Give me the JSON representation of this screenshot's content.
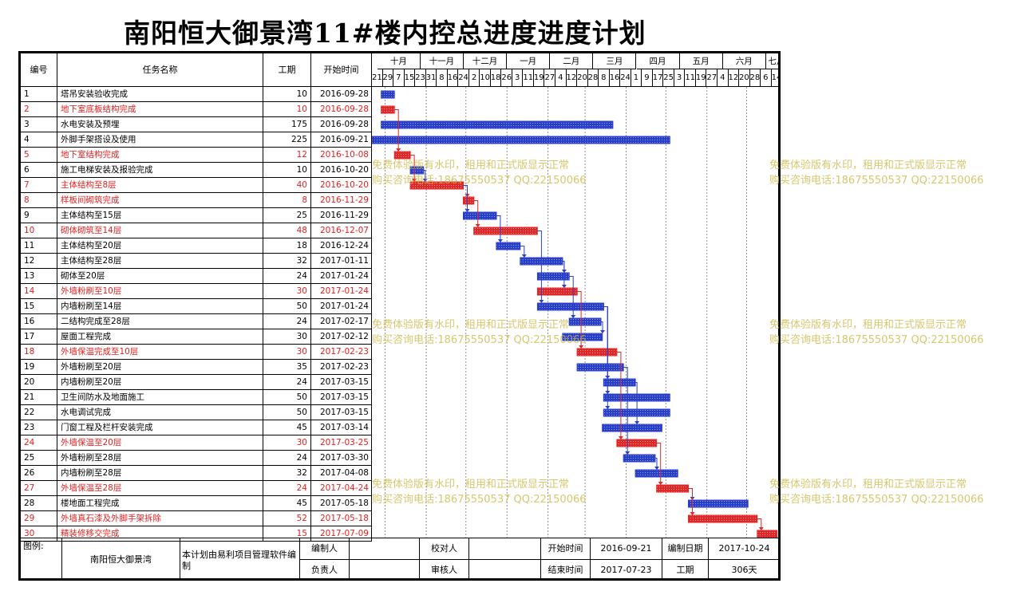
{
  "title": "南阳恒大御景湾11#楼内控总进度进度计划",
  "headers": {
    "id": "编号",
    "name": "任务名称",
    "duration": "工期",
    "start": "开始时间"
  },
  "months": [
    "十月",
    "十一月",
    "十二月",
    "一月",
    "二月",
    "三月",
    "四月",
    "五月",
    "六月",
    "七月"
  ],
  "weeks": [
    "21",
    "29",
    "7",
    "15",
    "23",
    "31",
    "8",
    "16",
    "24",
    "2",
    "10",
    "18",
    "26",
    "3",
    "11",
    "19",
    "27",
    "4",
    "12",
    "20",
    "28",
    "8",
    "16",
    "24",
    "1",
    "9",
    "17",
    "25",
    "3",
    "11",
    "19",
    "27",
    "4",
    "12",
    "20",
    "28",
    "6",
    "14"
  ],
  "tasks": [
    {
      "id": "1",
      "name": "塔吊安装验收完成",
      "duration": "10",
      "start": "2016-09-28",
      "critical": false
    },
    {
      "id": "2",
      "name": "地下室底板结构完成",
      "duration": "10",
      "start": "2016-09-28",
      "critical": true
    },
    {
      "id": "3",
      "name": "水电安装及预埋",
      "duration": "175",
      "start": "2016-09-28",
      "critical": false
    },
    {
      "id": "4",
      "name": "外脚手架搭设及使用",
      "duration": "225",
      "start": "2016-09-21",
      "critical": false
    },
    {
      "id": "5",
      "name": "地下室结构完成",
      "duration": "12",
      "start": "2016-10-08",
      "critical": true
    },
    {
      "id": "6",
      "name": "施工电梯安装及报验完成",
      "duration": "10",
      "start": "2016-10-20",
      "critical": false
    },
    {
      "id": "7",
      "name": "主体结构至8层",
      "duration": "40",
      "start": "2016-10-20",
      "critical": true
    },
    {
      "id": "8",
      "name": "样板间砌筑完成",
      "duration": "8",
      "start": "2016-11-29",
      "critical": true
    },
    {
      "id": "9",
      "name": "主体结构至15层",
      "duration": "25",
      "start": "2016-11-29",
      "critical": false
    },
    {
      "id": "10",
      "name": "砌体砌筑至14层",
      "duration": "48",
      "start": "2016-12-07",
      "critical": true
    },
    {
      "id": "11",
      "name": "主体结构至20层",
      "duration": "18",
      "start": "2016-12-24",
      "critical": false
    },
    {
      "id": "12",
      "name": "主体结构至28层",
      "duration": "32",
      "start": "2017-01-11",
      "critical": false
    },
    {
      "id": "13",
      "name": "砌体至20层",
      "duration": "24",
      "start": "2017-01-24",
      "critical": false
    },
    {
      "id": "14",
      "name": "外墙粉刷至10层",
      "duration": "30",
      "start": "2017-01-24",
      "critical": true
    },
    {
      "id": "15",
      "name": "内墙粉刷至14层",
      "duration": "50",
      "start": "2017-01-24",
      "critical": false
    },
    {
      "id": "16",
      "name": "二结构完成至28层",
      "duration": "24",
      "start": "2017-02-17",
      "critical": false
    },
    {
      "id": "17",
      "name": "屋面工程完成",
      "duration": "30",
      "start": "2017-02-12",
      "critical": false
    },
    {
      "id": "18",
      "name": "外墙保温完成至10层",
      "duration": "30",
      "start": "2017-02-23",
      "critical": true
    },
    {
      "id": "19",
      "name": "外墙粉刷至20层",
      "duration": "35",
      "start": "2017-02-23",
      "critical": false
    },
    {
      "id": "20",
      "name": "内墙粉刷至20层",
      "duration": "24",
      "start": "2017-03-15",
      "critical": false
    },
    {
      "id": "21",
      "name": "卫生间防水及地面施工",
      "duration": "50",
      "start": "2017-03-15",
      "critical": false
    },
    {
      "id": "22",
      "name": "水电调试完成",
      "duration": "50",
      "start": "2017-03-15",
      "critical": false
    },
    {
      "id": "23",
      "name": "门窗工程及栏杆安装完成",
      "duration": "45",
      "start": "2017-03-14",
      "critical": false
    },
    {
      "id": "24",
      "name": "外墙保温至20层",
      "duration": "30",
      "start": "2017-03-25",
      "critical": true
    },
    {
      "id": "25",
      "name": "外墙粉刷至28层",
      "duration": "24",
      "start": "2017-03-30",
      "critical": false
    },
    {
      "id": "26",
      "name": "内墙粉刷至28层",
      "duration": "32",
      "start": "2017-04-08",
      "critical": false
    },
    {
      "id": "27",
      "name": "外墙保温至28层",
      "duration": "24",
      "start": "2017-04-24",
      "critical": true
    },
    {
      "id": "28",
      "name": "楼地面工程完成",
      "duration": "45",
      "start": "2017-05-18",
      "critical": false
    },
    {
      "id": "29",
      "name": "外墙真石漆及外脚手架拆除",
      "duration": "52",
      "start": "2017-05-18",
      "critical": true
    },
    {
      "id": "30",
      "name": "精装修移交完成",
      "duration": "15",
      "start": "2017-07-09",
      "critical": true
    }
  ],
  "footer": {
    "legend_label": "图例:",
    "project_name": "南阳恒大御景湾",
    "software_note": "本计划由易利项目管理软件编制",
    "compiler_label": "编制人",
    "checker_label": "校对人",
    "start_label": "开始时间",
    "start_value": "2016-09-21",
    "compile_date_label": "编制日期",
    "compile_date_value": "2017-10-24",
    "owner_label": "负责人",
    "reviewer_label": "审核人",
    "end_label": "结束时间",
    "end_value": "2017-07-23",
    "duration_label": "工期",
    "duration_value": "306天"
  },
  "watermark": {
    "line1": "免费体验版有水印，租用和正式版显示正常",
    "line2": "购买咨询电话:18675550537 QQ:22150066"
  },
  "chart_data": {
    "type": "gantt",
    "timeline_start": "2016-09-21",
    "timeline_end": "2017-07-23",
    "colors": {
      "normal": "#2a3fc8",
      "critical": "#e02828"
    },
    "links": [
      [
        2,
        5
      ],
      [
        5,
        7
      ],
      [
        6,
        7
      ],
      [
        7,
        8
      ],
      [
        7,
        9
      ],
      [
        8,
        10
      ],
      [
        9,
        11
      ],
      [
        10,
        15
      ],
      [
        11,
        12
      ],
      [
        12,
        13
      ],
      [
        12,
        14
      ],
      [
        13,
        16
      ],
      [
        14,
        18
      ],
      [
        15,
        20
      ],
      [
        15,
        21
      ],
      [
        15,
        22
      ],
      [
        16,
        17
      ],
      [
        18,
        24
      ],
      [
        19,
        25
      ],
      [
        20,
        23
      ],
      [
        24,
        27
      ],
      [
        25,
        26
      ],
      [
        27,
        28
      ],
      [
        27,
        29
      ],
      [
        29,
        30
      ]
    ]
  }
}
